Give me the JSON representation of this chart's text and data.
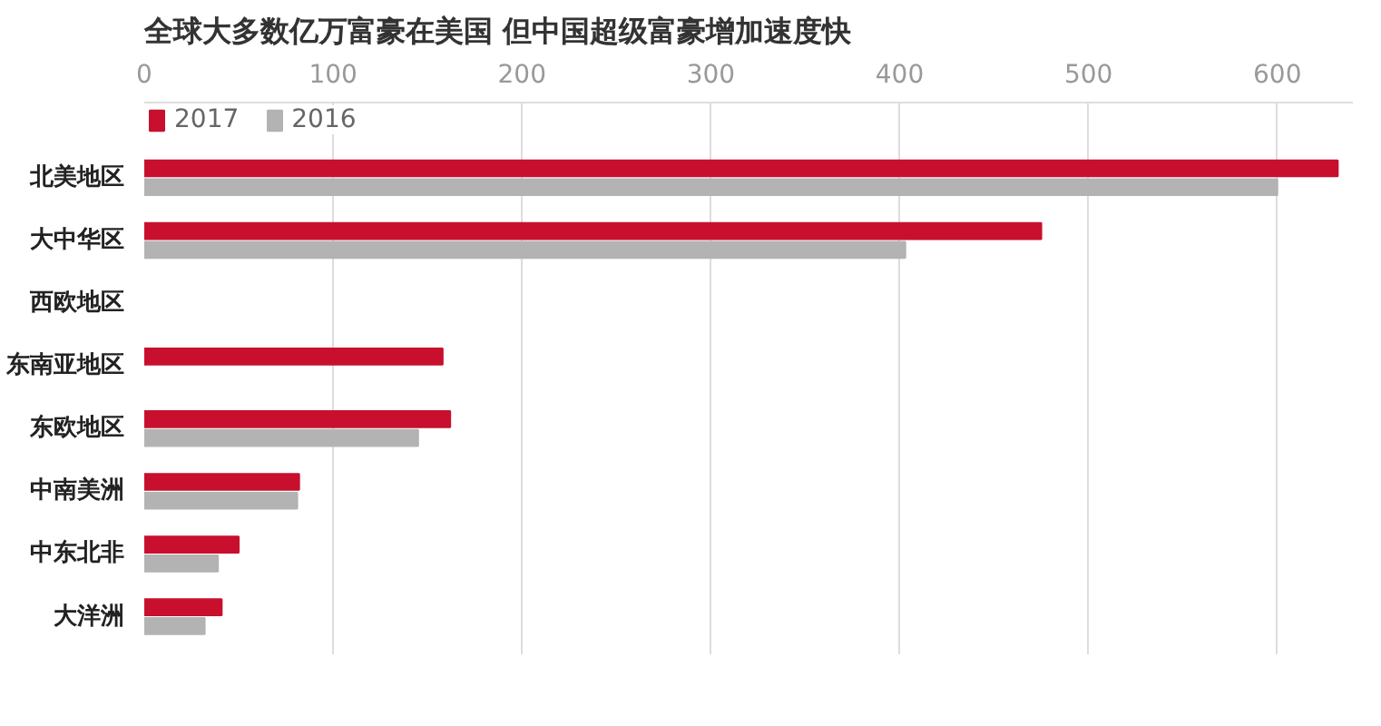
{
  "chart_data": {
    "type": "bar",
    "orientation": "horizontal",
    "title": "全球大多数亿万富豪在美国 但中国超级富豪增加速度快",
    "categories": [
      "北美地区",
      "大中华区",
      "西欧地区",
      "东南亚地区",
      "东欧地区",
      "中南美洲",
      "中东北非",
      "大洋洲"
    ],
    "series": [
      {
        "name": "2017",
        "color": "#c8102e",
        "values": [
          632,
          475,
          null,
          158,
          162,
          82,
          50,
          41
        ]
      },
      {
        "name": "2016",
        "color": "#b3b3b3",
        "values": [
          600,
          403,
          null,
          null,
          145,
          81,
          39,
          32
        ]
      }
    ],
    "xlim": [
      0,
      640
    ],
    "xticks": [
      0,
      100,
      200,
      300,
      400,
      500,
      600
    ],
    "grid": "x",
    "legend": "top left"
  }
}
